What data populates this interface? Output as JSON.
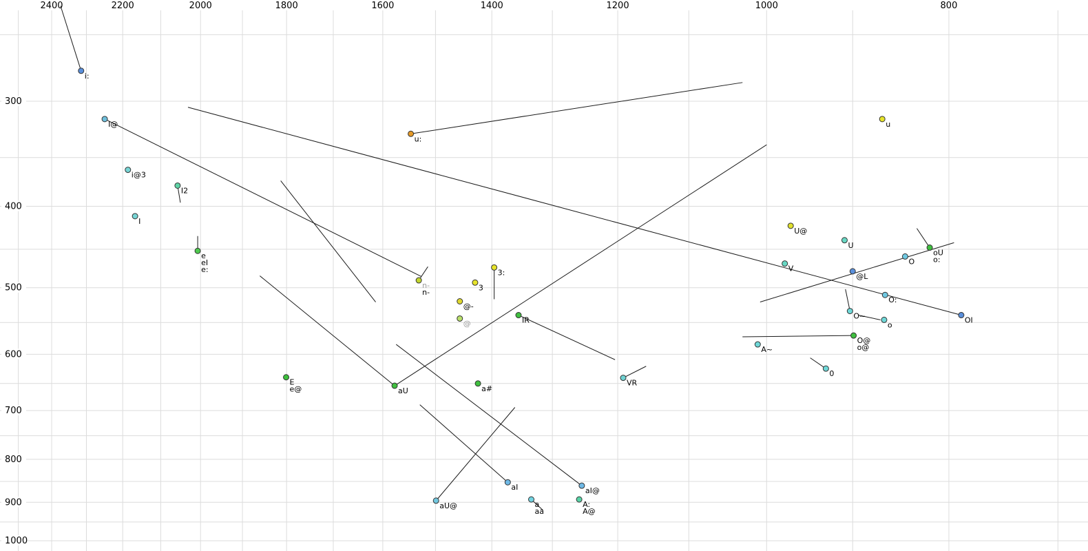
{
  "chart_data": {
    "type": "scatter",
    "title": "",
    "description": "Vowel formant plot: F2 (Hz) on reversed logarithmic top axis, F1 (Hz) on logarithmic left axis; SAMPA vowel symbols with diphthong trajectory lines",
    "x_axis": {
      "position": "top",
      "unit": "Hz",
      "scale": "log",
      "reversed": true,
      "tick_labels": [
        2400,
        2200,
        2000,
        1800,
        1600,
        1400,
        1200,
        1000,
        800
      ],
      "gridlines": [
        2500,
        2400,
        2300,
        2200,
        2100,
        2000,
        1900,
        1800,
        1700,
        1600,
        1500,
        1400,
        1300,
        1200,
        1100,
        1000,
        900,
        800,
        700
      ]
    },
    "y_axis": {
      "position": "left",
      "unit": "Hz",
      "scale": "log",
      "reversed": false,
      "tick_labels": [
        300,
        400,
        500,
        600,
        700,
        800,
        900,
        1000
      ],
      "gridlines": [
        250,
        300,
        350,
        400,
        450,
        500,
        550,
        600,
        650,
        700,
        750,
        800,
        850,
        900,
        950,
        1000
      ]
    },
    "points": [
      {
        "name": "i:",
        "f2": 2315,
        "f1": 276,
        "fill": "#5a8fdb",
        "labels": [
          {
            "t": "i:",
            "c": "#000000"
          }
        ]
      },
      {
        "name": "I@",
        "f2": 2249,
        "f1": 315,
        "fill": "#6fbfdc",
        "labels": [
          {
            "t": "I@",
            "c": "#000000"
          }
        ]
      },
      {
        "name": "i@3",
        "f2": 2186,
        "f1": 362,
        "fill": "#77d5d5",
        "labels": [
          {
            "t": "i@3",
            "c": "#000000"
          }
        ]
      },
      {
        "name": "I2",
        "f2": 2057,
        "f1": 378,
        "fill": "#5fd3a6",
        "labels": [
          {
            "t": "I2",
            "c": "#000000"
          }
        ]
      },
      {
        "name": "I",
        "f2": 2167,
        "f1": 411,
        "fill": "#77d5d5",
        "labels": [
          {
            "t": "I",
            "c": "#000000"
          }
        ]
      },
      {
        "name": "e",
        "f2": 2007,
        "f1": 452,
        "fill": "#4ec94e",
        "labels": [
          {
            "t": "e",
            "c": "#000000"
          },
          {
            "t": "eI",
            "c": "#000000"
          },
          {
            "t": "e:",
            "c": "#000000"
          }
        ]
      },
      {
        "name": "u:",
        "f2": 1546,
        "f1": 328,
        "fill": "#e69a28",
        "labels": [
          {
            "t": "u:",
            "c": "#000000"
          }
        ]
      },
      {
        "name": "n-",
        "f2": 1531,
        "f1": 490,
        "fill": "#c2d62e",
        "labels": [
          {
            "t": "n-",
            "c": "#9a9a9a"
          },
          {
            "t": "n-",
            "c": "#000000"
          }
        ]
      },
      {
        "name": "3",
        "f2": 1429,
        "f1": 493,
        "fill": "#e6e32a",
        "labels": [
          {
            "t": "3",
            "c": "#000000"
          }
        ]
      },
      {
        "name": "3:",
        "f2": 1396,
        "f1": 473,
        "fill": "#e6e32a",
        "labels": [
          {
            "t": "3:",
            "c": "#000000"
          }
        ]
      },
      {
        "name": "@-",
        "f2": 1456,
        "f1": 519,
        "fill": "#dfd82e",
        "labels": [
          {
            "t": "@-",
            "c": "#000000"
          }
        ]
      },
      {
        "name": "@",
        "f2": 1456,
        "f1": 544,
        "fill": "#b9e06b",
        "labels": [
          {
            "t": "@",
            "c": "#9a9a9a"
          }
        ]
      },
      {
        "name": "IR",
        "f2": 1355,
        "f1": 539,
        "fill": "#3fbf3f",
        "labels": [
          {
            "t": "IR",
            "c": "#000000"
          }
        ]
      },
      {
        "name": "E",
        "f2": 1801,
        "f1": 639,
        "fill": "#3cbf3c",
        "labels": [
          {
            "t": "E",
            "c": "#000000"
          },
          {
            "t": "e@",
            "c": "#000000"
          }
        ]
      },
      {
        "name": "aU",
        "f2": 1577,
        "f1": 654,
        "fill": "#3fbf3f",
        "labels": [
          {
            "t": "aU",
            "c": "#000000"
          }
        ]
      },
      {
        "name": "a#",
        "f2": 1424,
        "f1": 650,
        "fill": "#3fbf3f",
        "labels": [
          {
            "t": "a#",
            "c": "#000000"
          }
        ]
      },
      {
        "name": "VR",
        "f2": 1192,
        "f1": 640,
        "fill": "#6fd3d3",
        "labels": [
          {
            "t": "VR",
            "c": "#000000"
          }
        ]
      },
      {
        "name": "aI",
        "f2": 1373,
        "f1": 852,
        "fill": "#6fb9e6",
        "labels": [
          {
            "t": "aI",
            "c": "#000000"
          }
        ]
      },
      {
        "name": "aU@",
        "f2": 1499,
        "f1": 896,
        "fill": "#72c8e0",
        "labels": [
          {
            "t": "aU@",
            "c": "#000000"
          }
        ]
      },
      {
        "name": "a",
        "f2": 1334,
        "f1": 893,
        "fill": "#72d2e0",
        "labels": [
          {
            "t": "a",
            "c": "#000000"
          },
          {
            "t": "aa",
            "c": "#000000"
          }
        ]
      },
      {
        "name": "aI@",
        "f2": 1254,
        "f1": 860,
        "fill": "#6fb9e6",
        "labels": [
          {
            "t": "aI@",
            "c": "#000000"
          }
        ]
      },
      {
        "name": "A:",
        "f2": 1258,
        "f1": 893,
        "fill": "#57d3a5",
        "labels": [
          {
            "t": "A:",
            "c": "#000000"
          },
          {
            "t": "A@",
            "c": "#000000"
          }
        ]
      },
      {
        "name": "U@",
        "f2": 971,
        "f1": 422,
        "fill": "#e0e02e",
        "labels": [
          {
            "t": "U@",
            "c": "#000000"
          }
        ]
      },
      {
        "name": "U",
        "f2": 909,
        "f1": 439,
        "fill": "#68d8c4",
        "labels": [
          {
            "t": "U",
            "c": "#000000"
          }
        ]
      },
      {
        "name": "V",
        "f2": 978,
        "f1": 468,
        "fill": "#68d8c4",
        "labels": [
          {
            "t": "V",
            "c": "#000000"
          }
        ]
      },
      {
        "name": "u",
        "f2": 868,
        "f1": 315,
        "fill": "#e6e32a",
        "labels": [
          {
            "t": "u",
            "c": "#000000"
          }
        ]
      },
      {
        "name": "oU",
        "f2": 819,
        "f1": 448,
        "fill": "#3fbf3f",
        "labels": [
          {
            "t": "oU",
            "c": "#000000"
          },
          {
            "t": "o:",
            "c": "#000000"
          }
        ]
      },
      {
        "name": "O",
        "f2": 844,
        "f1": 459,
        "fill": "#70c9e2",
        "labels": [
          {
            "t": "O",
            "c": "#000000"
          }
        ]
      },
      {
        "name": "@L",
        "f2": 900,
        "f1": 478,
        "fill": "#5a8fdb",
        "labels": [
          {
            "t": "@L",
            "c": "#000000"
          }
        ]
      },
      {
        "name": "O:",
        "f2": 865,
        "f1": 510,
        "fill": "#70c9e2",
        "labels": [
          {
            "t": "O:",
            "c": "#000000"
          }
        ]
      },
      {
        "name": "O~",
        "f2": 903,
        "f1": 533,
        "fill": "#6fd8d8",
        "labels": [
          {
            "t": "O~",
            "c": "#000000"
          }
        ]
      },
      {
        "name": "o",
        "f2": 866,
        "f1": 546,
        "fill": "#6fd8d8",
        "labels": [
          {
            "t": "o",
            "c": "#000000"
          }
        ]
      },
      {
        "name": "OI",
        "f2": 788,
        "f1": 539,
        "fill": "#5a8fdb",
        "labels": [
          {
            "t": "OI",
            "c": "#000000"
          }
        ]
      },
      {
        "name": "O@",
        "f2": 899,
        "f1": 570,
        "fill": "#3fbf3f",
        "labels": [
          {
            "t": "O@",
            "c": "#000000"
          },
          {
            "t": "o@",
            "c": "#000000"
          }
        ]
      },
      {
        "name": "A~",
        "f2": 1011,
        "f1": 584,
        "fill": "#6fd8d8",
        "labels": [
          {
            "t": "A~",
            "c": "#000000"
          }
        ]
      },
      {
        "name": "0",
        "f2": 930,
        "f1": 624,
        "fill": "#6fd8d8",
        "labels": [
          {
            "t": "0",
            "c": "#000000"
          }
        ]
      }
    ],
    "segments": [
      {
        "from": [
          2374,
          231
        ],
        "to": [
          2315,
          276
        ]
      },
      {
        "from": [
          2249,
          315
        ],
        "to": [
          1526,
          485
        ]
      },
      {
        "from": [
          1813,
          373
        ],
        "to": [
          1614,
          520
        ]
      },
      {
        "from": [
          2031,
          305
        ],
        "to": [
          788,
          539
        ]
      },
      {
        "from": [
          1546,
          328
        ],
        "to": [
          1030,
          285
        ]
      },
      {
        "from": [
          1577,
          654
        ],
        "to": [
          1000,
          338
        ]
      },
      {
        "from": [
          1860,
          484
        ],
        "to": [
          1577,
          654
        ]
      },
      {
        "from": [
          1373,
          852
        ],
        "to": [
          1529,
          689
        ]
      },
      {
        "from": [
          1499,
          896
        ],
        "to": [
          1361,
          694
        ]
      },
      {
        "from": [
          1254,
          860
        ],
        "to": [
          1574,
          584
        ]
      },
      {
        "from": [
          1355,
          539
        ],
        "to": [
          1204,
          609
        ]
      },
      {
        "from": [
          1192,
          640
        ],
        "to": [
          1159,
          620
        ]
      },
      {
        "from": [
          1008,
          520
        ],
        "to": [
          795,
          442
        ]
      },
      {
        "from": [
          832,
          425
        ],
        "to": [
          819,
          448
        ]
      },
      {
        "from": [
          908,
          502
        ],
        "to": [
          903,
          533
        ]
      },
      {
        "from": [
          894,
          539
        ],
        "to": [
          870,
          546
        ]
      },
      {
        "from": [
          1030,
          572
        ],
        "to": [
          899,
          570
        ]
      },
      {
        "from": [
          948,
          606
        ],
        "to": [
          930,
          624
        ]
      },
      {
        "from": [
          2007,
          434
        ],
        "to": [
          2007,
          452
        ]
      },
      {
        "from": [
          1396,
          473
        ],
        "to": [
          1396,
          516
        ]
      },
      {
        "from": [
          2057,
          378
        ],
        "to": [
          2050,
          396
        ]
      },
      {
        "from": [
          1531,
          490
        ],
        "to": [
          1514,
          472
        ]
      },
      {
        "from": [
          1334,
          893
        ],
        "to": [
          1315,
          920
        ]
      }
    ],
    "colors": {
      "background": "#ffffff",
      "grid": "#dcdcdc",
      "segment": "#1a1a1a",
      "tick_text": "#000000",
      "point_stroke": "#333333",
      "muted_label": "#9a9a9a"
    }
  }
}
